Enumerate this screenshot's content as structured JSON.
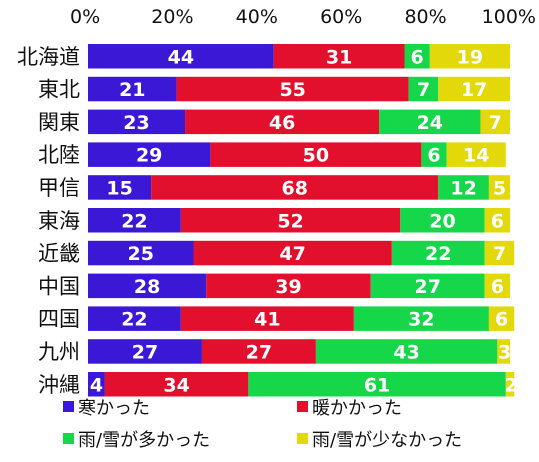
{
  "chart_data": {
    "type": "bar",
    "orientation": "horizontal",
    "stacked": true,
    "xlim": [
      0,
      100
    ],
    "xticks": [
      "0%",
      "20%",
      "40%",
      "60%",
      "80%",
      "100%"
    ],
    "categories": [
      "北海道",
      "東北",
      "関東",
      "北陸",
      "甲信",
      "東海",
      "近畿",
      "中国",
      "四国",
      "九州",
      "沖縄"
    ],
    "series": [
      {
        "name": "寒かった",
        "color": "#3b17d6",
        "values": [
          44,
          21,
          23,
          29,
          15,
          22,
          25,
          28,
          22,
          27,
          4
        ]
      },
      {
        "name": "暖かかった",
        "color": "#e2102c",
        "values": [
          31,
          55,
          46,
          50,
          68,
          52,
          47,
          39,
          41,
          27,
          34
        ]
      },
      {
        "name": "雨/雪が多かった",
        "color": "#16d64a",
        "values": [
          6,
          7,
          24,
          6,
          12,
          20,
          22,
          27,
          32,
          43,
          61
        ]
      },
      {
        "name": "雨/雪が少なかった",
        "color": "#e3d90a",
        "values": [
          19,
          17,
          7,
          14,
          5,
          6,
          7,
          6,
          6,
          3,
          2
        ]
      }
    ],
    "legend": "bottom",
    "grid": false
  }
}
